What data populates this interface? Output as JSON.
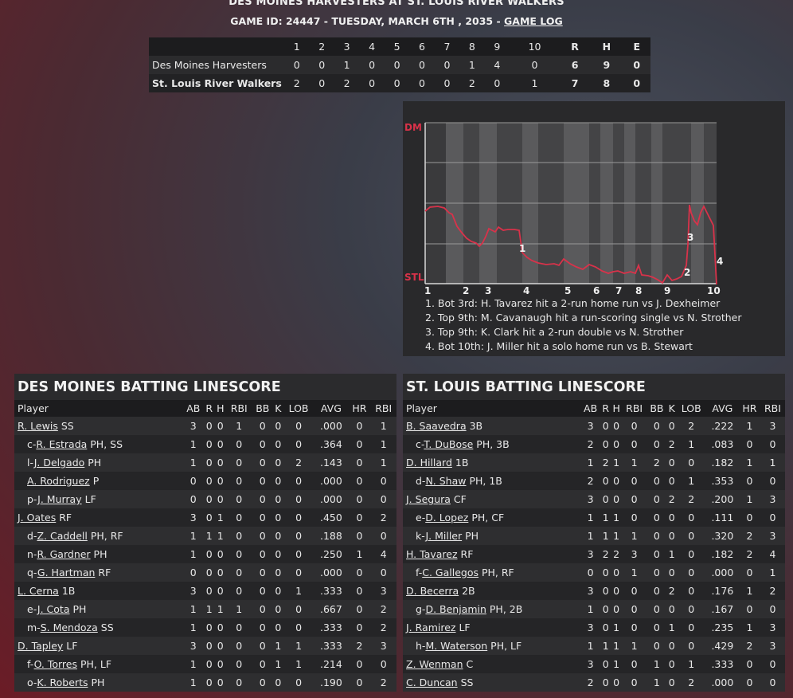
{
  "header": {
    "title": "DES MOINES HARVESTERS AT ST. LOUIS RIVER WALKERS",
    "game_info": "GAME ID: 24447 - TUESDAY, MARCH 6TH , 2035 - ",
    "game_log_link": "GAME LOG"
  },
  "linescore": {
    "columns": [
      "1",
      "2",
      "3",
      "4",
      "5",
      "6",
      "7",
      "8",
      "9",
      "10",
      "R",
      "H",
      "E"
    ],
    "teams": [
      {
        "name": "Des Moines Harvesters",
        "innings": [
          "0",
          "0",
          "1",
          "0",
          "0",
          "0",
          "0",
          "1",
          "4",
          "0"
        ],
        "r": "6",
        "h": "9",
        "e": "0"
      },
      {
        "name": "St. Louis River Walkers",
        "innings": [
          "2",
          "0",
          "2",
          "0",
          "0",
          "0",
          "0",
          "2",
          "0",
          "1"
        ],
        "r": "7",
        "h": "8",
        "e": "0"
      }
    ]
  },
  "chart_data": {
    "type": "line",
    "title": "",
    "y_top_label": "DM",
    "y_bottom_label": "STL",
    "x_tick_labels": [
      "1",
      "2",
      "3",
      "4",
      "5",
      "6",
      "7",
      "8",
      "9",
      "10"
    ],
    "colors": {
      "line": "#d9324a",
      "labels": "#d9324a"
    },
    "markers": [
      "1",
      "2",
      "3",
      "4"
    ],
    "notes": [
      "1. Bot 3rd: H. Tavarez hit a 2-run home run vs J. Dexheimer",
      "2. Top 9th: M. Cavanaugh hit a run-scoring single vs N. Strother",
      "3. Top 9th: K. Clark hit a 2-run double vs N. Strother",
      "4. Bot 10th: J. Miller hit a solo home run vs B. Stewart"
    ]
  },
  "batting_headers": [
    "Player",
    "AB",
    "R",
    "H",
    "RBI",
    "BB",
    "K",
    "LOB",
    "AVG",
    "HR",
    "RBI"
  ],
  "dm_batting": {
    "title": "DES MOINES BATTING LINESCORE",
    "rows": [
      {
        "prefix": "",
        "name": "R. Lewis",
        "pos": "SS",
        "stats": [
          "3",
          "0",
          "0",
          "1",
          "0",
          "0",
          "0",
          ".000",
          "0",
          "1"
        ]
      },
      {
        "prefix": "c-",
        "name": "R. Estrada",
        "pos": "PH, SS",
        "stats": [
          "1",
          "0",
          "0",
          "0",
          "0",
          "0",
          "0",
          ".364",
          "0",
          "1"
        ]
      },
      {
        "prefix": "l-",
        "name": "J. Delgado",
        "pos": "PH",
        "stats": [
          "1",
          "0",
          "0",
          "0",
          "0",
          "0",
          "2",
          ".143",
          "0",
          "1"
        ]
      },
      {
        "prefix": "",
        "name": "A. Rodriguez",
        "pos": "P",
        "stats": [
          "0",
          "0",
          "0",
          "0",
          "0",
          "0",
          "0",
          ".000",
          "0",
          "0"
        ],
        "indent": true
      },
      {
        "prefix": "p-",
        "name": "J. Murray",
        "pos": "LF",
        "stats": [
          "0",
          "0",
          "0",
          "0",
          "0",
          "0",
          "0",
          ".000",
          "0",
          "0"
        ]
      },
      {
        "prefix": "",
        "name": "J. Oates",
        "pos": "RF",
        "stats": [
          "3",
          "0",
          "1",
          "0",
          "0",
          "0",
          "0",
          ".450",
          "0",
          "2"
        ]
      },
      {
        "prefix": "d-",
        "name": "Z. Caddell",
        "pos": "PH, RF",
        "stats": [
          "1",
          "1",
          "1",
          "0",
          "0",
          "0",
          "0",
          ".188",
          "0",
          "0"
        ]
      },
      {
        "prefix": "n-",
        "name": "R. Gardner",
        "pos": "PH",
        "stats": [
          "1",
          "0",
          "0",
          "0",
          "0",
          "0",
          "0",
          ".250",
          "1",
          "4"
        ]
      },
      {
        "prefix": "q-",
        "name": "G. Hartman",
        "pos": "RF",
        "stats": [
          "0",
          "0",
          "0",
          "0",
          "0",
          "0",
          "0",
          ".000",
          "0",
          "0"
        ]
      },
      {
        "prefix": "",
        "name": "L. Cerna",
        "pos": "1B",
        "stats": [
          "3",
          "0",
          "0",
          "0",
          "0",
          "0",
          "1",
          ".333",
          "0",
          "3"
        ]
      },
      {
        "prefix": "e-",
        "name": "J. Cota",
        "pos": "PH",
        "stats": [
          "1",
          "1",
          "1",
          "1",
          "0",
          "0",
          "0",
          ".667",
          "0",
          "2"
        ]
      },
      {
        "prefix": "m-",
        "name": "S. Mendoza",
        "pos": "SS",
        "stats": [
          "1",
          "0",
          "0",
          "0",
          "0",
          "0",
          "0",
          ".333",
          "0",
          "2"
        ]
      },
      {
        "prefix": "",
        "name": "D. Tapley",
        "pos": "LF",
        "stats": [
          "3",
          "0",
          "0",
          "0",
          "0",
          "1",
          "1",
          ".333",
          "2",
          "3"
        ]
      },
      {
        "prefix": "f-",
        "name": "O. Torres",
        "pos": "PH, LF",
        "stats": [
          "1",
          "0",
          "0",
          "0",
          "0",
          "1",
          "1",
          ".214",
          "0",
          "0"
        ]
      },
      {
        "prefix": "o-",
        "name": "K. Roberts",
        "pos": "PH",
        "stats": [
          "1",
          "0",
          "0",
          "0",
          "0",
          "0",
          "0",
          ".190",
          "0",
          "2"
        ]
      }
    ]
  },
  "stl_batting": {
    "title": "ST. LOUIS BATTING LINESCORE",
    "rows": [
      {
        "prefix": "",
        "name": "B. Saavedra",
        "pos": "3B",
        "stats": [
          "3",
          "0",
          "0",
          "0",
          "0",
          "0",
          "2",
          ".222",
          "1",
          "3"
        ]
      },
      {
        "prefix": "c-",
        "name": "T. DuBose",
        "pos": "PH, 3B",
        "stats": [
          "2",
          "0",
          "0",
          "0",
          "0",
          "2",
          "1",
          ".083",
          "0",
          "0"
        ]
      },
      {
        "prefix": "",
        "name": "D. Hillard",
        "pos": "1B",
        "stats": [
          "1",
          "2",
          "1",
          "1",
          "2",
          "0",
          "0",
          ".182",
          "1",
          "1"
        ]
      },
      {
        "prefix": "d-",
        "name": "N. Shaw",
        "pos": "PH, 1B",
        "stats": [
          "2",
          "0",
          "0",
          "0",
          "0",
          "0",
          "1",
          ".353",
          "0",
          "0"
        ]
      },
      {
        "prefix": "",
        "name": "J. Segura",
        "pos": "CF",
        "stats": [
          "3",
          "0",
          "0",
          "0",
          "0",
          "2",
          "2",
          ".200",
          "1",
          "3"
        ]
      },
      {
        "prefix": "e-",
        "name": "D. Lopez",
        "pos": "PH, CF",
        "stats": [
          "1",
          "1",
          "1",
          "0",
          "0",
          "0",
          "0",
          ".111",
          "0",
          "0"
        ]
      },
      {
        "prefix": "k-",
        "name": "J. Miller",
        "pos": "PH",
        "stats": [
          "1",
          "1",
          "1",
          "1",
          "0",
          "0",
          "0",
          ".320",
          "2",
          "3"
        ]
      },
      {
        "prefix": "",
        "name": "H. Tavarez",
        "pos": "RF",
        "stats": [
          "3",
          "2",
          "2",
          "3",
          "0",
          "1",
          "0",
          ".182",
          "2",
          "4"
        ]
      },
      {
        "prefix": "f-",
        "name": "C. Gallegos",
        "pos": "PH, RF",
        "stats": [
          "0",
          "0",
          "0",
          "1",
          "0",
          "0",
          "0",
          ".000",
          "0",
          "1"
        ]
      },
      {
        "prefix": "",
        "name": "D. Becerra",
        "pos": "2B",
        "stats": [
          "3",
          "0",
          "0",
          "0",
          "0",
          "2",
          "0",
          ".176",
          "1",
          "2"
        ]
      },
      {
        "prefix": "g-",
        "name": "D. Benjamin",
        "pos": "PH, 2B",
        "stats": [
          "1",
          "0",
          "0",
          "0",
          "0",
          "0",
          "0",
          ".167",
          "0",
          "0"
        ]
      },
      {
        "prefix": "",
        "name": "J. Ramirez",
        "pos": "LF",
        "stats": [
          "3",
          "0",
          "1",
          "0",
          "0",
          "1",
          "0",
          ".235",
          "1",
          "3"
        ]
      },
      {
        "prefix": "h-",
        "name": "M. Waterson",
        "pos": "PH, LF",
        "stats": [
          "1",
          "1",
          "1",
          "1",
          "0",
          "0",
          "0",
          ".429",
          "2",
          "3"
        ]
      },
      {
        "prefix": "",
        "name": "Z. Wenman",
        "pos": "C",
        "stats": [
          "3",
          "0",
          "1",
          "0",
          "1",
          "0",
          "1",
          ".333",
          "0",
          "0"
        ]
      },
      {
        "prefix": "",
        "name": "C. Duncan",
        "pos": "SS",
        "stats": [
          "2",
          "0",
          "0",
          "0",
          "1",
          "0",
          "2",
          ".000",
          "0",
          "0"
        ]
      }
    ]
  }
}
